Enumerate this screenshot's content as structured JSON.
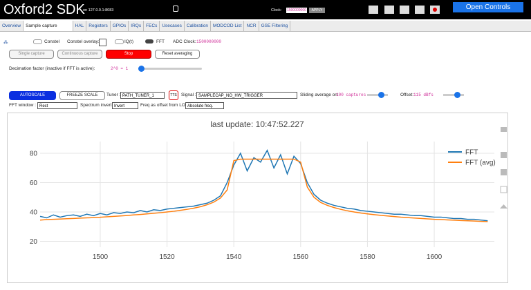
{
  "header": {
    "title": "Oxford2 SDK",
    "host": "on 127.0.0.1:8083",
    "clock_label": "Clock:",
    "clock_value": "1500000000",
    "apply": "APPLY",
    "open_controls": "Open Controls"
  },
  "tabs": [
    "Overview",
    "Sample capture",
    "HAL",
    "Registers",
    "GPIOs",
    "IRQs",
    "FECs",
    "Usecases",
    "Calibration",
    "MODCOD List",
    "NCR",
    "GSE Filtering"
  ],
  "controls": {
    "constel": "Constel",
    "constel_overlay": "Constel overlay:",
    "iq": "IQ(t)",
    "fft": "FFT",
    "adc_clock_label": "ADC Clock:",
    "adc_clock_value": "1500000000",
    "single_capture": "Single capture",
    "continuous_capture": "Continuous capture",
    "stop": "Stop",
    "reset_averaging": "Reset averaging",
    "decimation_label": "Decimation factor (inactive if FFT is active):",
    "decimation_value": "2^0 = 1",
    "autoscale": "AUTOSCALE",
    "freeze_scale": "FREEZE SCALE",
    "tuner_label": "Tuner :",
    "tuner_value": "PATH_TUNER_1",
    "tts": "TTS",
    "signal_label": "Signal :",
    "signal_value": "SAMPLECAP_NO_HW_TRIGGER",
    "sliding_label": "Sliding average on:",
    "sliding_value": "100 captures",
    "offset_label": "Offset:",
    "offset_value": "115 dBfs",
    "fft_window_label": "FFT window :",
    "fft_window_value": "Rect",
    "invert_label": "Spectrum invert :",
    "invert_value": "Invert",
    "freq_label": "Freq as offset from LO :",
    "freq_value": "Absolute freq."
  },
  "chart_data": {
    "type": "line",
    "title": "last update: 10:47:52.227",
    "x": [
      1482,
      1484,
      1486,
      1488,
      1490,
      1492,
      1494,
      1496,
      1498,
      1500,
      1502,
      1504,
      1506,
      1508,
      1510,
      1512,
      1514,
      1516,
      1518,
      1520,
      1522,
      1524,
      1526,
      1528,
      1530,
      1532,
      1534,
      1536,
      1538,
      1540,
      1542,
      1544,
      1546,
      1548,
      1550,
      1552,
      1554,
      1556,
      1558,
      1560,
      1562,
      1564,
      1566,
      1568,
      1570,
      1572,
      1574,
      1576,
      1578,
      1580,
      1582,
      1584,
      1586,
      1588,
      1590,
      1592,
      1594,
      1596,
      1598,
      1600,
      1602,
      1604,
      1606,
      1608,
      1610,
      1612,
      1614,
      1616
    ],
    "series": [
      {
        "name": "FFT",
        "color": "#1f77b4",
        "values": [
          37,
          36,
          38,
          36.5,
          37.5,
          38,
          37,
          38.5,
          37.5,
          39,
          38,
          39.5,
          39,
          40,
          39.5,
          41,
          40,
          41.5,
          41,
          42,
          42.5,
          43,
          43.5,
          44,
          45,
          46,
          48,
          51,
          60,
          72,
          80,
          68,
          77,
          74,
          82,
          70,
          79,
          66,
          78,
          73,
          60,
          52,
          48,
          46,
          44.5,
          43.5,
          42.5,
          42,
          41,
          40.5,
          40,
          39.5,
          39,
          38.5,
          38.5,
          38,
          37.5,
          37.5,
          37,
          36.5,
          36.5,
          36,
          35.5,
          35.5,
          35,
          35,
          34.5,
          34
        ]
      },
      {
        "name": "FFT (avg)",
        "color": "#ff7f0e",
        "values": [
          34.5,
          34.8,
          35,
          35.2,
          35.4,
          35.6,
          35.8,
          36,
          36.2,
          36.4,
          36.7,
          37,
          37.3,
          37.6,
          38,
          38.3,
          38.7,
          39.1,
          39.5,
          40,
          40.5,
          41.1,
          41.8,
          42.6,
          43.6,
          44.9,
          46.7,
          49.5,
          55,
          75,
          76,
          76,
          76,
          76,
          76,
          76,
          76,
          76,
          76,
          74,
          57,
          50,
          46.5,
          44.5,
          43,
          41.8,
          40.8,
          40,
          39.3,
          38.7,
          38.2,
          37.7,
          37.3,
          36.9,
          36.5,
          36.2,
          35.9,
          35.6,
          35.3,
          35,
          34.8,
          34.6,
          34.4,
          34.2,
          34,
          33.8,
          33.6,
          33.4
        ]
      }
    ],
    "xlim": [
      1482,
      1618
    ],
    "ylim": [
      16,
      88
    ],
    "xticks": [
      1500,
      1520,
      1540,
      1560,
      1580,
      1600
    ],
    "yticks": [
      20,
      40,
      60,
      80
    ],
    "grid": true
  }
}
